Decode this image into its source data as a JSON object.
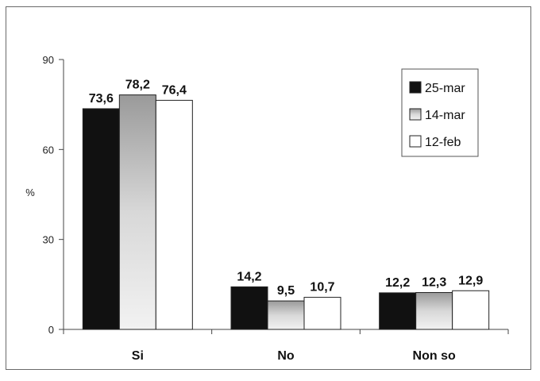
{
  "chart_data": {
    "type": "bar",
    "categories": [
      "Si",
      "No",
      "Non so"
    ],
    "series": [
      {
        "name": "25-mar",
        "values": [
          73.6,
          14.2,
          12.2
        ],
        "labels": [
          "73,6",
          "14,2",
          "12,2"
        ],
        "color": "#111111"
      },
      {
        "name": "14-mar",
        "values": [
          78.2,
          9.5,
          12.3
        ],
        "labels": [
          "78,2",
          "9,5",
          "12,3"
        ],
        "color": "#c8c8c8"
      },
      {
        "name": "12-feb",
        "values": [
          76.4,
          10.7,
          12.9
        ],
        "labels": [
          "76,4",
          "10,7",
          "12,9"
        ],
        "color": "#ffffff"
      }
    ],
    "ylabel": "%",
    "ylim": [
      0,
      90
    ],
    "yticks": [
      "0",
      "30",
      "60",
      "90"
    ],
    "ytick_values": [
      0,
      30,
      60,
      90
    ],
    "grid": false,
    "legend_position": "top-right"
  }
}
